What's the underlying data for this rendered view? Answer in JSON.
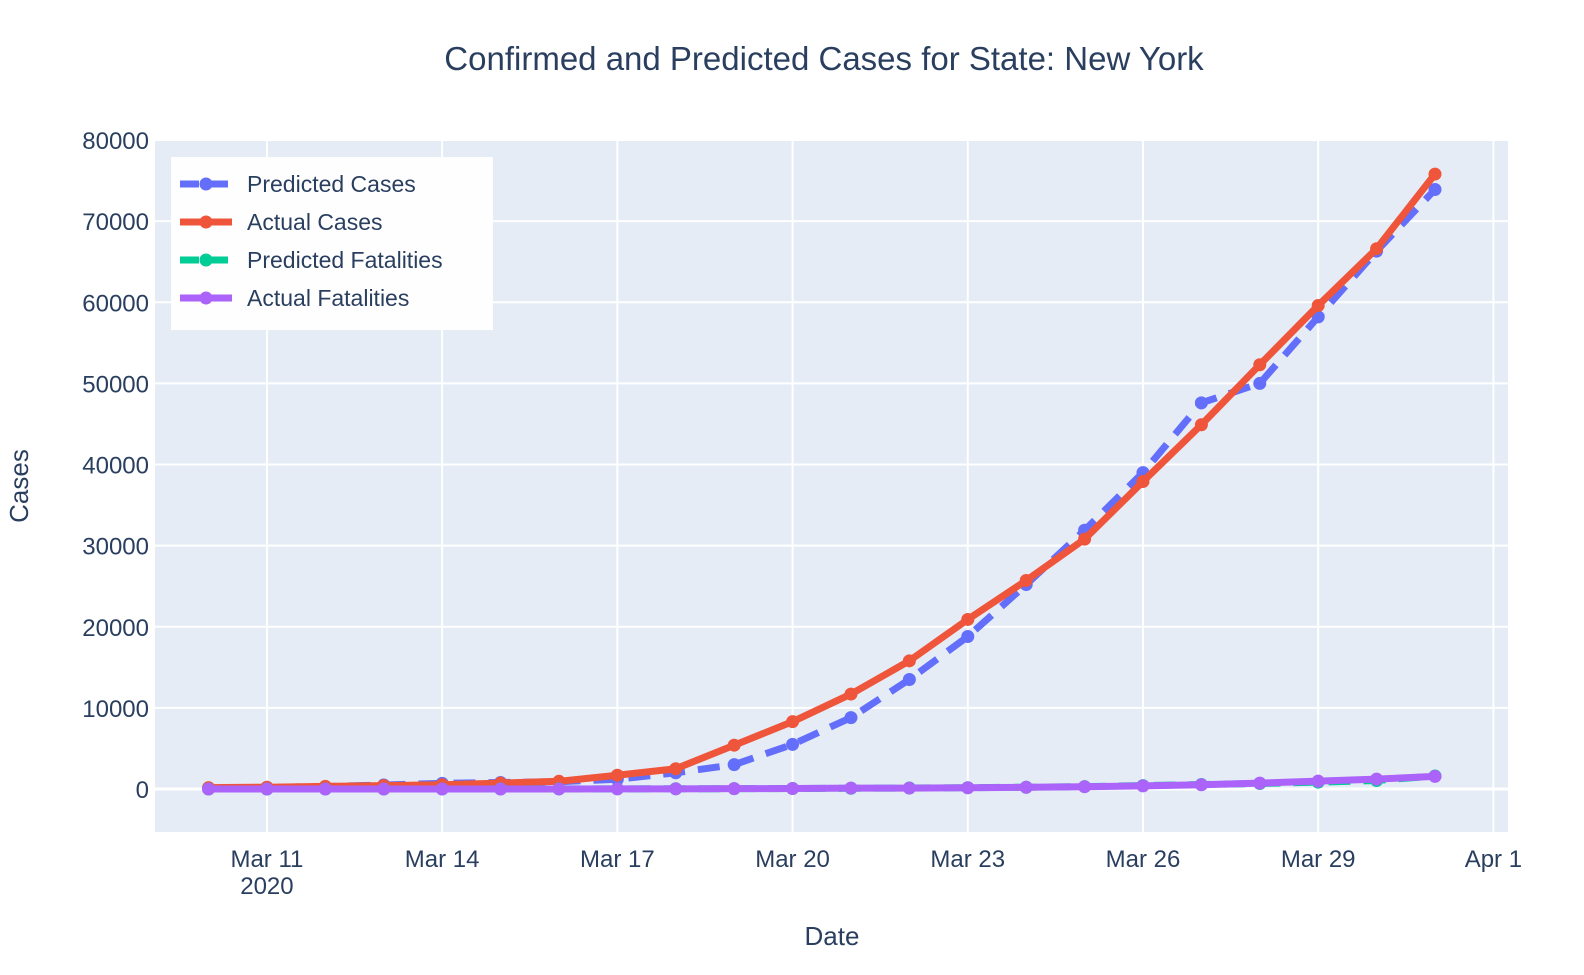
{
  "chart_data": {
    "type": "line",
    "title": "Confirmed and Predicted Cases for State: New York",
    "xlabel": "Date",
    "ylabel": "Cases",
    "x_start": "2020-03-10",
    "x": [
      "2020-03-10",
      "2020-03-11",
      "2020-03-12",
      "2020-03-13",
      "2020-03-14",
      "2020-03-15",
      "2020-03-16",
      "2020-03-17",
      "2020-03-18",
      "2020-03-19",
      "2020-03-20",
      "2020-03-21",
      "2020-03-22",
      "2020-03-23",
      "2020-03-24",
      "2020-03-25",
      "2020-03-26",
      "2020-03-27",
      "2020-03-28",
      "2020-03-29",
      "2020-03-30",
      "2020-03-31"
    ],
    "xlim": [
      "2020-03-09T02:00",
      "2020-04-01T06:00"
    ],
    "x_ticks": [
      {
        "date": "2020-03-11",
        "label": "Mar 11",
        "sublabel": "2020"
      },
      {
        "date": "2020-03-14",
        "label": "Mar 14"
      },
      {
        "date": "2020-03-17",
        "label": "Mar 17"
      },
      {
        "date": "2020-03-20",
        "label": "Mar 20"
      },
      {
        "date": "2020-03-23",
        "label": "Mar 23"
      },
      {
        "date": "2020-03-26",
        "label": "Mar 26"
      },
      {
        "date": "2020-03-29",
        "label": "Mar 29"
      },
      {
        "date": "2020-04-01",
        "label": "Apr 1"
      }
    ],
    "ylim": [
      -5300,
      80000
    ],
    "y_ticks": [
      0,
      10000,
      20000,
      30000,
      40000,
      50000,
      60000,
      70000,
      80000
    ],
    "grid": true,
    "legend_position": "top-left",
    "series": [
      {
        "name": "Predicted Cases",
        "color": "#636efa",
        "dash": true,
        "values": [
          100,
          200,
          300,
          500,
          700,
          800,
          900,
          1200,
          2000,
          3000,
          5500,
          8800,
          13500,
          18800,
          25200,
          31900,
          39000,
          47600,
          50000,
          58200,
          66300,
          73900
        ]
      },
      {
        "name": "Actual Cases",
        "color": "#ef553b",
        "dash": false,
        "values": [
          173,
          220,
          328,
          421,
          525,
          732,
          950,
          1700,
          2500,
          5400,
          8300,
          11700,
          15800,
          20900,
          25700,
          30800,
          37900,
          44900,
          52300,
          59600,
          66600,
          75800
        ]
      },
      {
        "name": "Predicted Fatalities",
        "color": "#00cc96",
        "dash": true,
        "values": [
          0,
          0,
          0,
          0,
          5,
          10,
          15,
          20,
          30,
          40,
          60,
          90,
          120,
          160,
          220,
          300,
          420,
          550,
          680,
          850,
          1050,
          1600
        ]
      },
      {
        "name": "Actual Fatalities",
        "color": "#ab63fa",
        "dash": false,
        "values": [
          0,
          0,
          0,
          0,
          2,
          3,
          7,
          12,
          20,
          44,
          63,
          114,
          114,
          157,
          210,
          285,
          385,
          519,
          728,
          965,
          1218,
          1550
        ]
      }
    ]
  }
}
